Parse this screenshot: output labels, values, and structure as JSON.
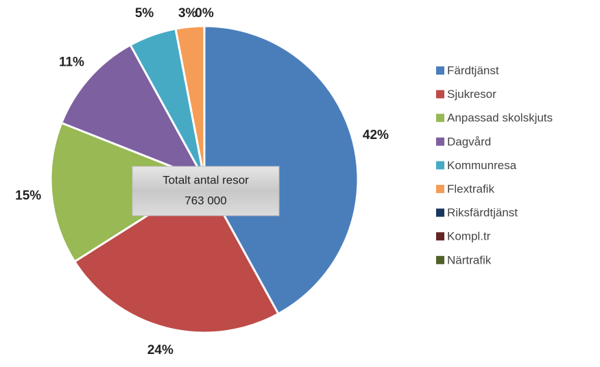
{
  "chart_data": {
    "type": "pie",
    "categories": [
      "Färdtjänst",
      "Sjukresor",
      "Anpassad skolskjuts",
      "Dagvård",
      "Kommunresa",
      "Flextrafik",
      "Riksfärdtjänst",
      "Kompl.tr",
      "Närtrafik"
    ],
    "values": [
      42,
      24,
      15,
      11,
      5,
      3,
      0,
      0,
      0
    ],
    "value_labels": [
      "42%",
      "24%",
      "15%",
      "11%",
      "5%",
      "3%",
      "0%",
      null,
      null
    ],
    "colors": [
      "#4a7ebb",
      "#be4b48",
      "#98b954",
      "#7d60a0",
      "#46aac5",
      "#f59d56",
      "#17375e",
      "#632523",
      "#4f6228"
    ],
    "annotation": [
      "Totalt antal resor",
      "763 000"
    ],
    "legend": "right"
  }
}
